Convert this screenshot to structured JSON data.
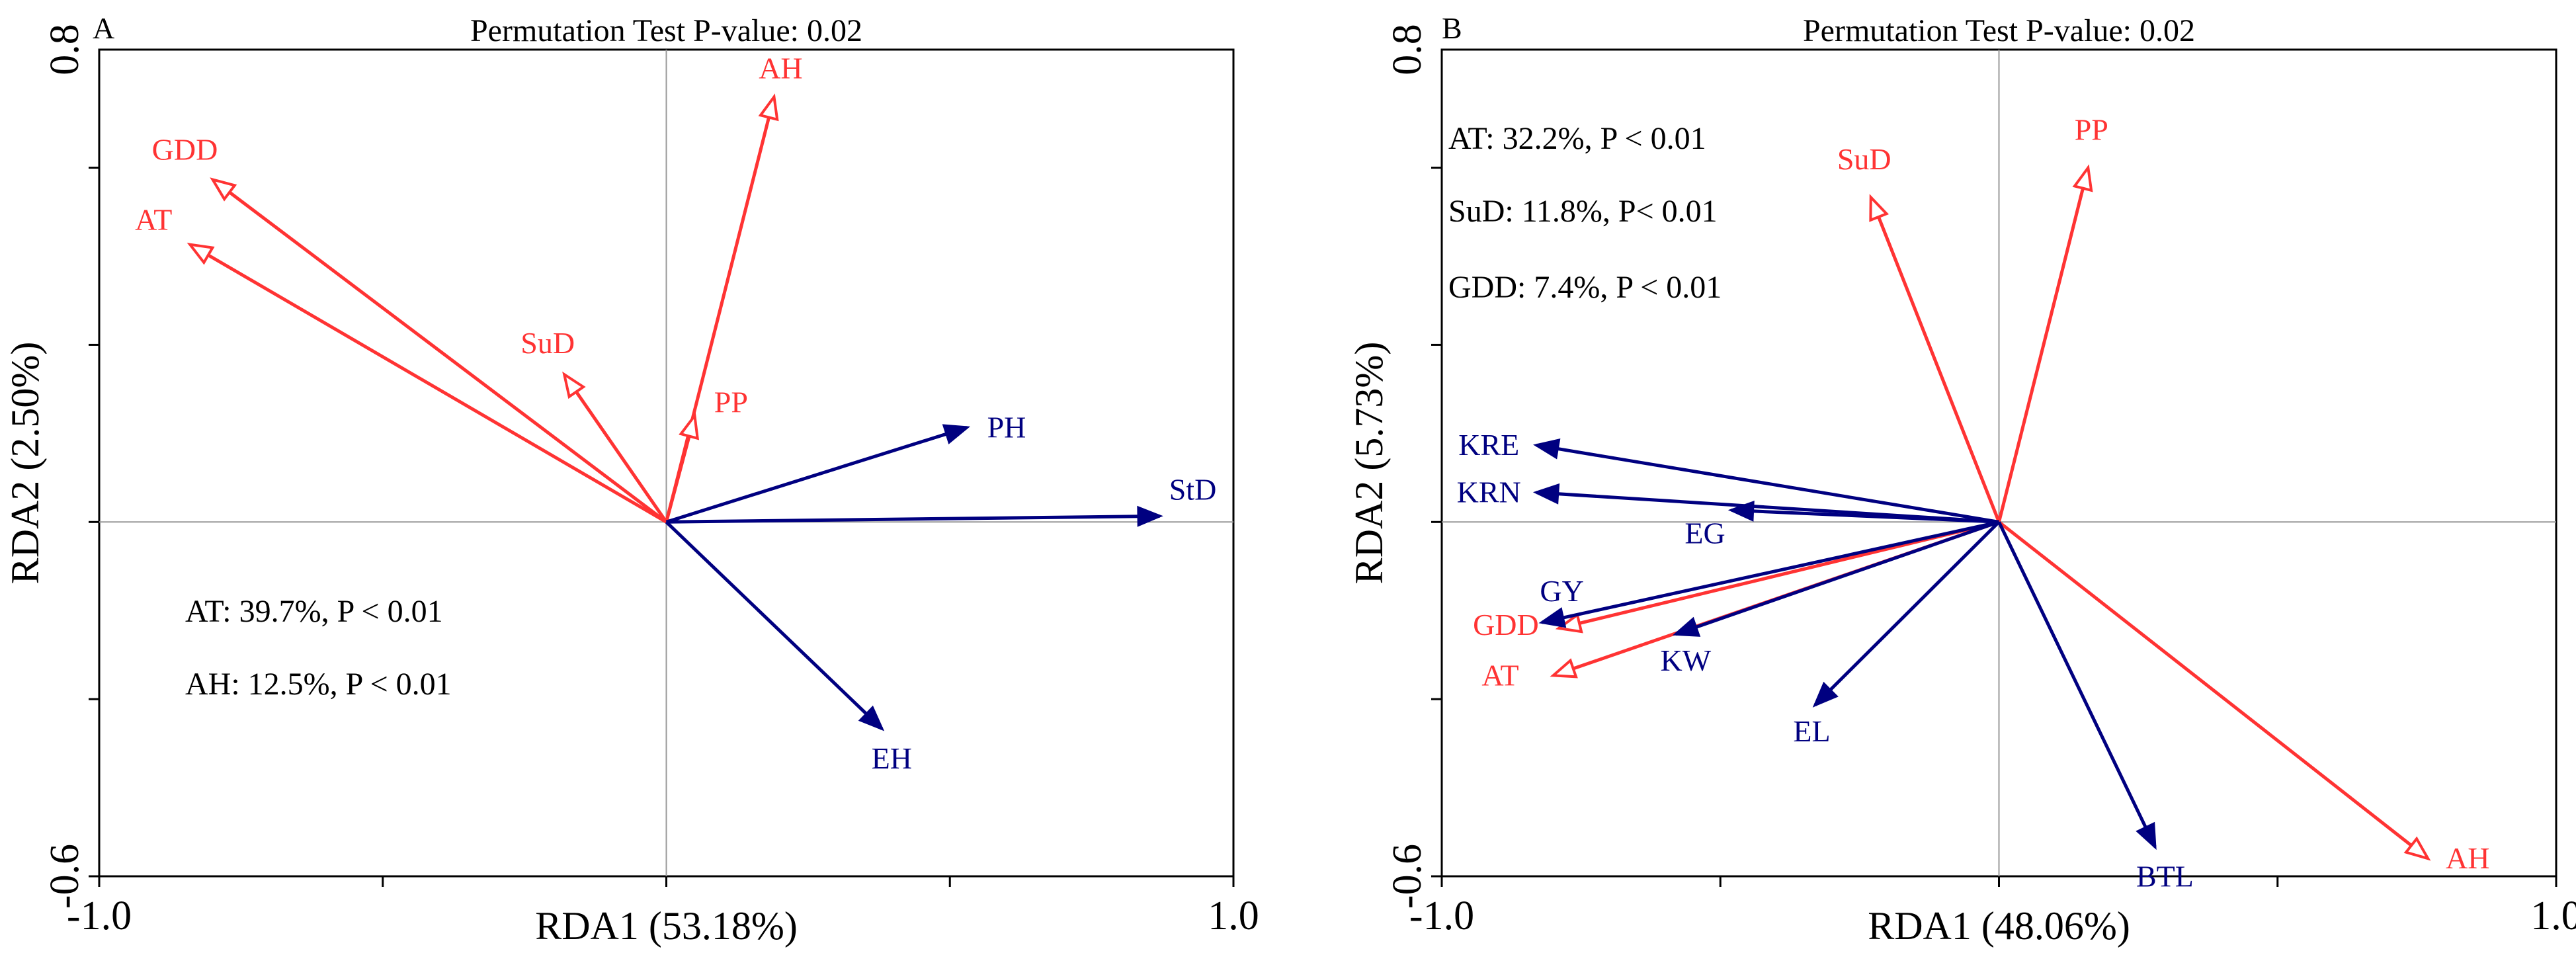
{
  "colors": {
    "environment": "#ff3333",
    "trait": "#000080",
    "zero_line": "#9a9a9a"
  },
  "chart_data": [
    {
      "type": "biplot",
      "panel": "A",
      "title": "Permutation Test P-value: 0.02",
      "xlabel": "RDA1 (53.18%)",
      "ylabel": "RDA2 (2.50%)",
      "xlim": [
        -1.0,
        1.0
      ],
      "ylim": [
        -0.6,
        0.8
      ],
      "x_tick_labels": [
        "-1.0",
        "1.0"
      ],
      "y_tick_labels": [
        "-0.6",
        "0.8"
      ],
      "minor_x_ticks": [
        -1.0,
        -0.5,
        0.0,
        0.5,
        1.0
      ],
      "minor_y_ticks": [
        -0.6,
        -0.3,
        0.0,
        0.3,
        0.6
      ],
      "arrows": [
        {
          "name": "AH",
          "group": "environment",
          "x": 0.19,
          "y": 0.72
        },
        {
          "name": "GDD",
          "group": "environment",
          "x": -0.8,
          "y": 0.58
        },
        {
          "name": "AT",
          "group": "environment",
          "x": -0.84,
          "y": 0.47
        },
        {
          "name": "SuD",
          "group": "environment",
          "x": -0.18,
          "y": 0.25
        },
        {
          "name": "PP",
          "group": "environment",
          "x": 0.05,
          "y": 0.18
        },
        {
          "name": "PH",
          "group": "trait",
          "x": 0.53,
          "y": 0.16
        },
        {
          "name": "StD",
          "group": "trait",
          "x": 0.87,
          "y": 0.01
        },
        {
          "name": "EH",
          "group": "trait",
          "x": 0.38,
          "y": -0.35
        }
      ],
      "annotations": [
        "AT: 39.7%, P < 0.01",
        "AH: 12.5%, P < 0.01"
      ]
    },
    {
      "type": "biplot",
      "panel": "B",
      "title": "Permutation Test P-value: 0.02",
      "xlabel": "RDA1 (48.06%)",
      "ylabel": "RDA2 (5.73%)",
      "xlim": [
        -1.0,
        1.0
      ],
      "ylim": [
        -0.6,
        0.8
      ],
      "x_tick_labels": [
        "-1.0",
        "1.0"
      ],
      "y_tick_labels": [
        "-0.6",
        "0.8"
      ],
      "minor_x_ticks": [
        -1.0,
        -0.5,
        0.0,
        0.5,
        1.0
      ],
      "minor_y_ticks": [
        -0.6,
        -0.3,
        0.0,
        0.3,
        0.6
      ],
      "arrows": [
        {
          "name": "PP",
          "group": "environment",
          "x": 0.16,
          "y": 0.6
        },
        {
          "name": "SuD",
          "group": "environment",
          "x": -0.23,
          "y": 0.55
        },
        {
          "name": "AH",
          "group": "environment",
          "x": 0.77,
          "y": -0.57
        },
        {
          "name": "GDD",
          "group": "environment",
          "x": -0.79,
          "y": -0.18
        },
        {
          "name": "AT",
          "group": "environment",
          "x": -0.8,
          "y": -0.26
        },
        {
          "name": "KRE",
          "group": "trait",
          "x": -0.83,
          "y": 0.13
        },
        {
          "name": "KRN",
          "group": "trait",
          "x": -0.83,
          "y": 0.05
        },
        {
          "name": "EG",
          "group": "trait",
          "x": -0.48,
          "y": 0.02
        },
        {
          "name": "GY",
          "group": "trait",
          "x": -0.82,
          "y": -0.17
        },
        {
          "name": "KW",
          "group": "trait",
          "x": -0.58,
          "y": -0.19
        },
        {
          "name": "EL",
          "group": "trait",
          "x": -0.33,
          "y": -0.31
        },
        {
          "name": "BTL",
          "group": "trait",
          "x": 0.28,
          "y": -0.55
        }
      ],
      "annotations": [
        "AT: 32.2%, P < 0.01",
        "SuD: 11.8%, P< 0.01",
        "GDD: 7.4%, P < 0.01"
      ]
    }
  ]
}
